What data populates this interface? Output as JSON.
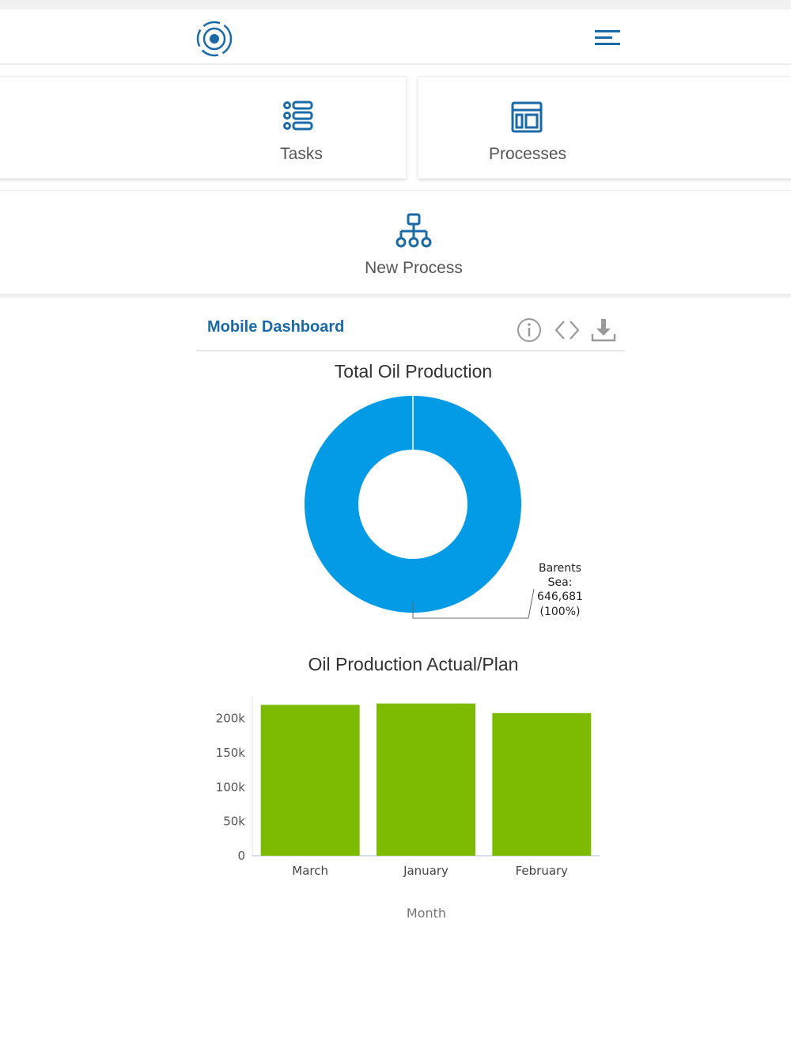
{
  "header": {
    "logo_icon": "target-circle-icon",
    "menu_icon": "hamburger-menu-icon"
  },
  "tiles": [
    {
      "label": "Tasks",
      "icon": "task-list-icon"
    },
    {
      "label": "Processes",
      "icon": "process-board-icon"
    },
    {
      "label": "New Process",
      "icon": "hierarchy-icon"
    }
  ],
  "dashboard": {
    "title": "Mobile Dashboard",
    "tools": [
      "info-icon",
      "code-icon",
      "download-icon"
    ]
  },
  "colors": {
    "accent": "#1a6aa8",
    "donut": "#039be5",
    "bars": "#7cbb00"
  },
  "chart_data": [
    {
      "type": "pie",
      "title": "Total Oil Production",
      "slices": [
        {
          "label": "Barents Sea",
          "value": 646681,
          "value_text": "646,681",
          "percent_text": "(100%)"
        }
      ]
    },
    {
      "type": "bar",
      "title": "Oil Production Actual/Plan",
      "categories": [
        "March",
        "January",
        "February"
      ],
      "values": [
        220000,
        222000,
        208000
      ],
      "xlabel": "Month",
      "ylabel": "",
      "ylim": [
        0,
        232000
      ],
      "yticks": [
        0,
        50000,
        100000,
        150000,
        200000
      ],
      "ytick_labels": [
        "0",
        "50k",
        "100k",
        "150k",
        "200k"
      ],
      "grid": false
    }
  ]
}
